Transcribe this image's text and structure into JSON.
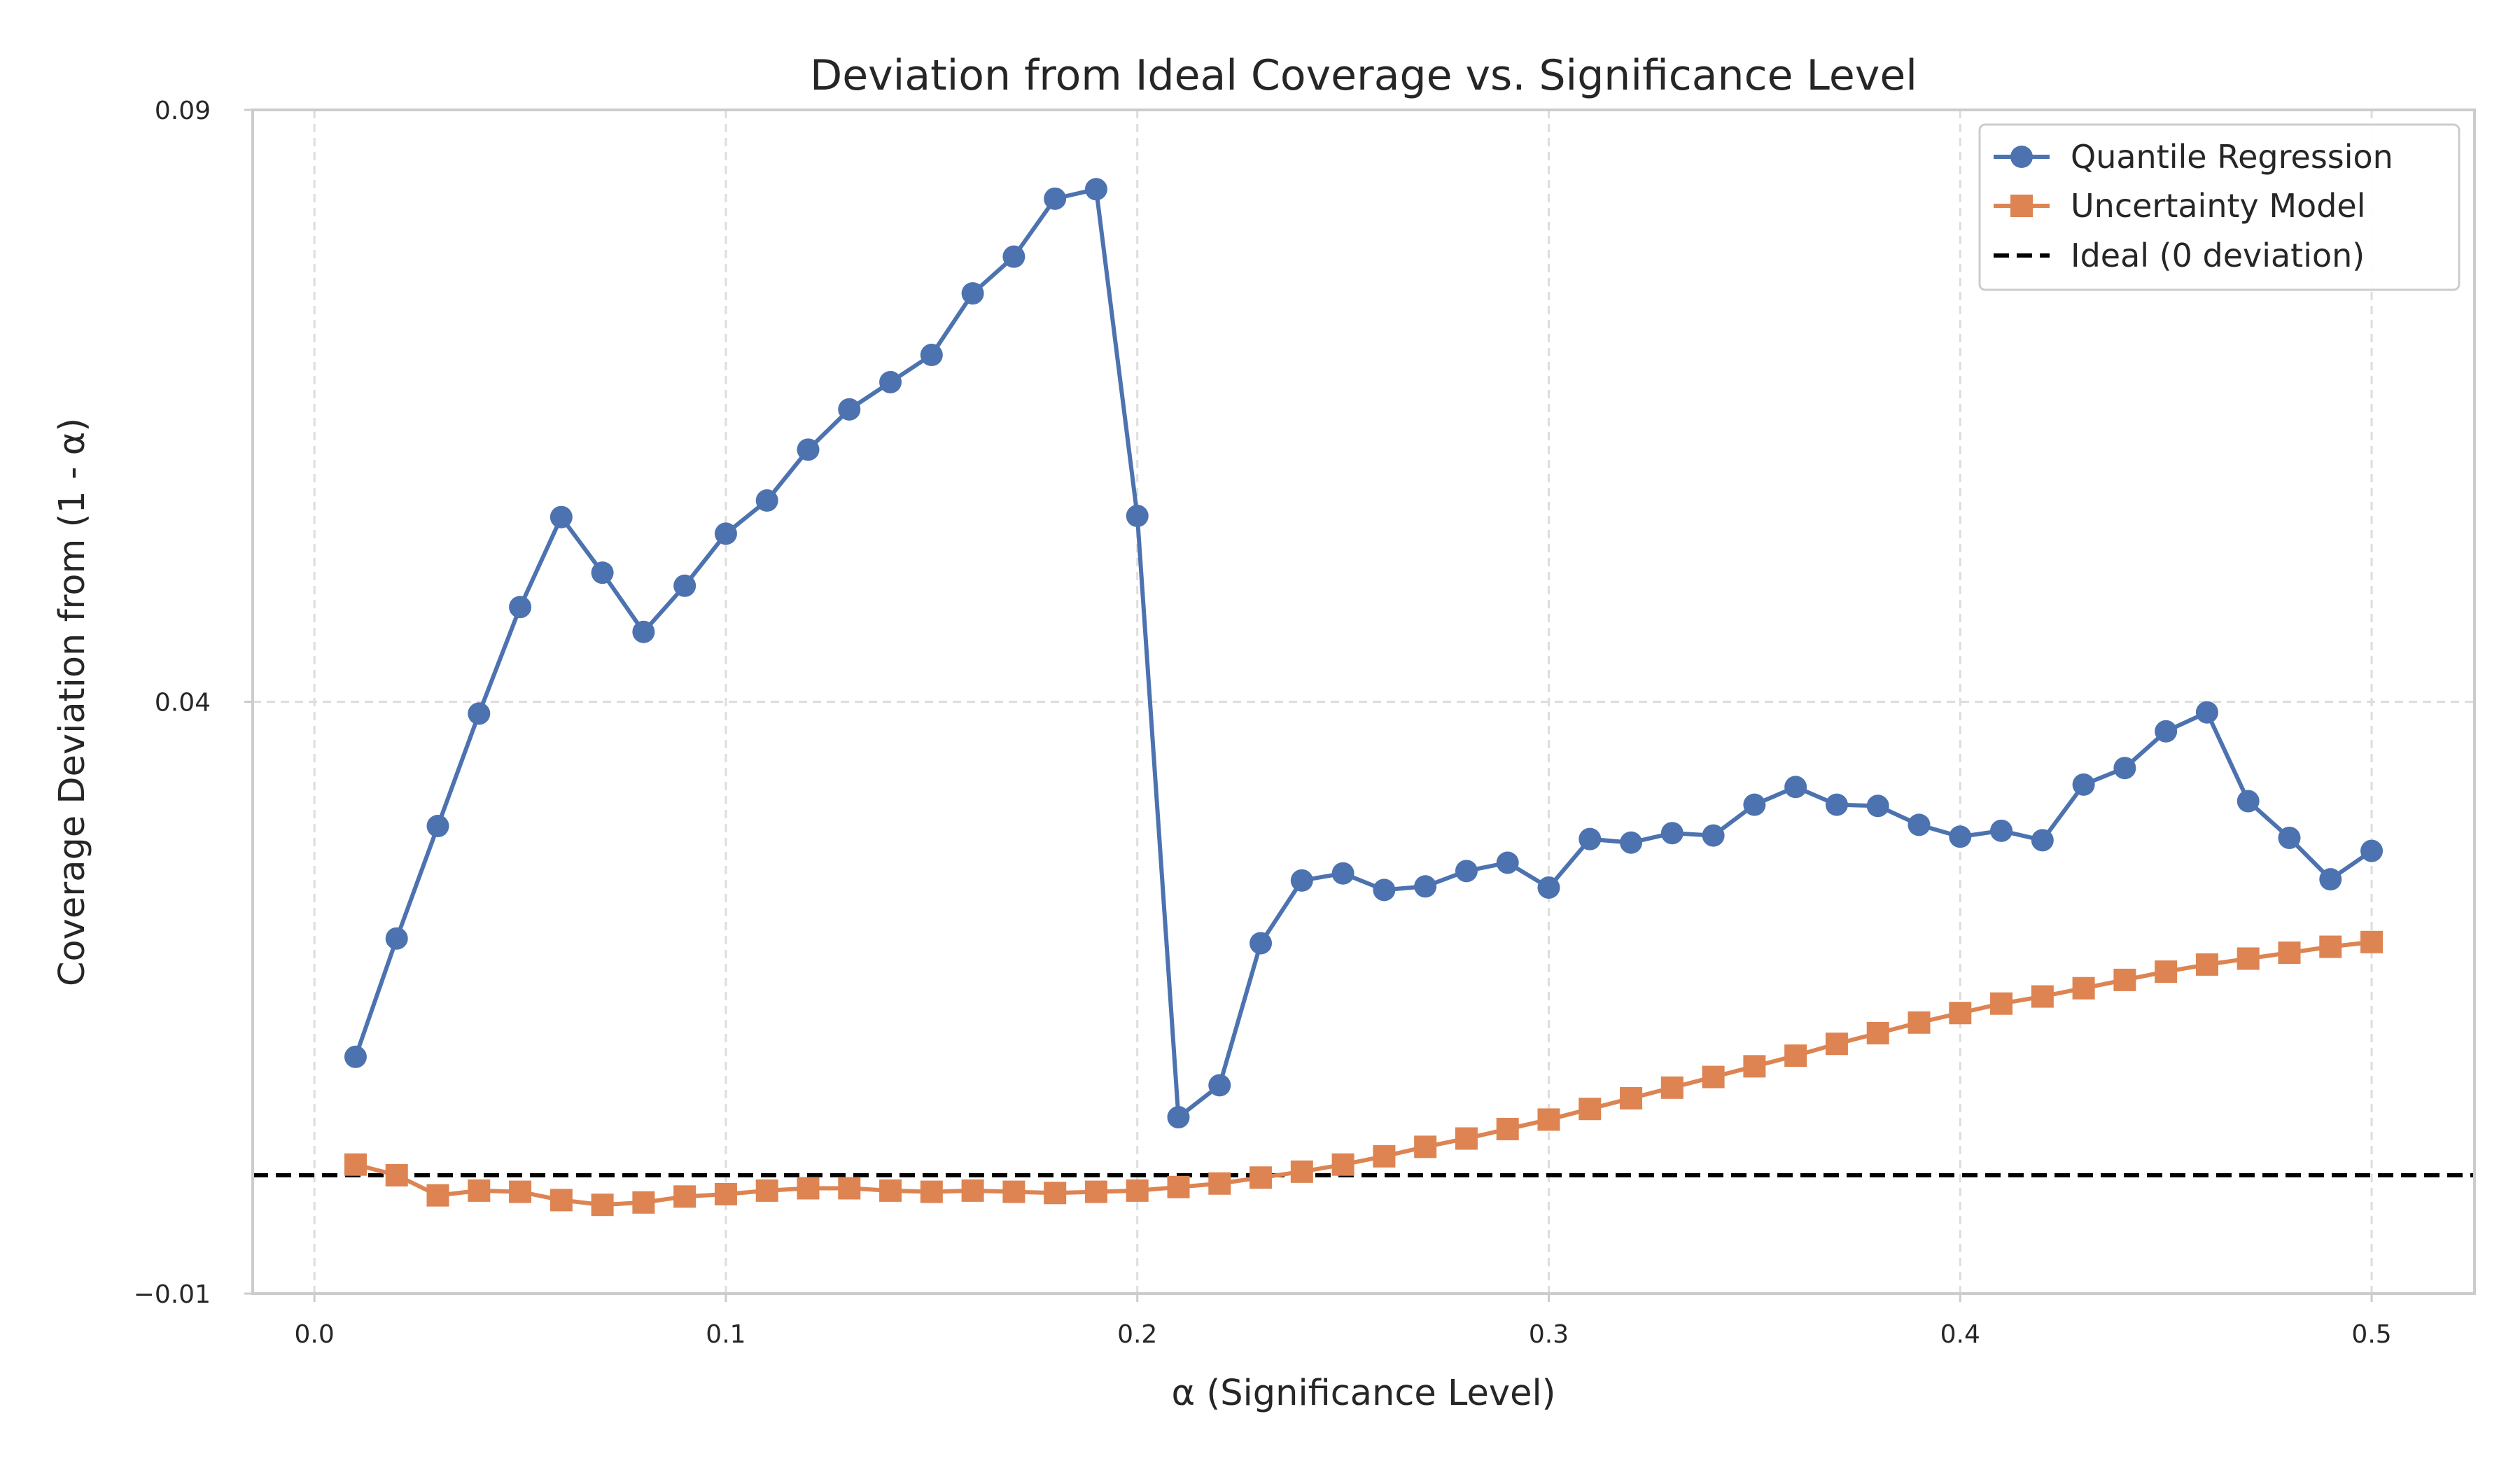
{
  "chart_data": {
    "type": "line",
    "title": "Deviation from Ideal Coverage vs. Significance Level",
    "xlabel": "α (Significance Level)",
    "ylabel": "Coverage Deviation from (1 - α)",
    "xlim": [
      -0.015,
      0.525
    ],
    "ylim": [
      -0.01,
      0.09
    ],
    "x_ticks": [
      0.0,
      0.1,
      0.2,
      0.3,
      0.4,
      0.5
    ],
    "x_tick_labels": [
      "0.0",
      "0.1",
      "0.2",
      "0.3",
      "0.4",
      "0.5"
    ],
    "y_ticks": [
      -0.01,
      0.04,
      0.09
    ],
    "y_tick_labels": [
      "−0.01",
      "0.04",
      "0.09"
    ],
    "grid": true,
    "legend_position": "top-right",
    "x": [
      0.01,
      0.02,
      0.03,
      0.04,
      0.05,
      0.06,
      0.07,
      0.08,
      0.09,
      0.1,
      0.11,
      0.12,
      0.13,
      0.14,
      0.15,
      0.16,
      0.17,
      0.18,
      0.19,
      0.2,
      0.21,
      0.22,
      0.23,
      0.24,
      0.25,
      0.26,
      0.27,
      0.28,
      0.29,
      0.3,
      0.31,
      0.32,
      0.33,
      0.34,
      0.35,
      0.36,
      0.37,
      0.38,
      0.39,
      0.4,
      0.41,
      0.42,
      0.43,
      0.44,
      0.45,
      0.46,
      0.47,
      0.48,
      0.49,
      0.5
    ],
    "series": [
      {
        "name": "Quantile Regression",
        "color": "#4c72b0",
        "marker": "circle",
        "values": [
          0.01,
          0.02,
          0.0295,
          0.039,
          0.048,
          0.0556,
          0.0509,
          0.0459,
          0.0498,
          0.0542,
          0.057,
          0.0613,
          0.0647,
          0.067,
          0.0693,
          0.0745,
          0.0776,
          0.0825,
          0.0833,
          0.0557,
          0.0049,
          0.0076,
          0.0196,
          0.0249,
          0.0255,
          0.0241,
          0.0244,
          0.0257,
          0.0264,
          0.0243,
          0.0284,
          0.0281,
          0.0289,
          0.0287,
          0.0313,
          0.0328,
          0.0313,
          0.0312,
          0.0296,
          0.0286,
          0.0291,
          0.0283,
          0.033,
          0.0344,
          0.0375,
          0.0391,
          0.0316,
          0.0285,
          0.025,
          0.0274
        ]
      },
      {
        "name": "Uncertainty Model",
        "color": "#dd8452",
        "marker": "square",
        "values": [
          0.0009,
          0.0,
          -0.0017,
          -0.0013,
          -0.0014,
          -0.0021,
          -0.0025,
          -0.0023,
          -0.0018,
          -0.0016,
          -0.0013,
          -0.0011,
          -0.0011,
          -0.0013,
          -0.0014,
          -0.0013,
          -0.0014,
          -0.0015,
          -0.0014,
          -0.0013,
          -0.001,
          -0.0007,
          -0.0002,
          0.0003,
          0.0009,
          0.0016,
          0.0024,
          0.0031,
          0.0039,
          0.0047,
          0.0056,
          0.0065,
          0.0074,
          0.0083,
          0.0092,
          0.0101,
          0.0111,
          0.012,
          0.0129,
          0.0137,
          0.0145,
          0.0151,
          0.0158,
          0.0165,
          0.0172,
          0.0178,
          0.0183,
          0.0188,
          0.0193,
          0.0197
        ]
      },
      {
        "name": "Ideal (0 deviation)",
        "color": "#000000",
        "style": "dashed",
        "constant": 0.0
      }
    ]
  }
}
